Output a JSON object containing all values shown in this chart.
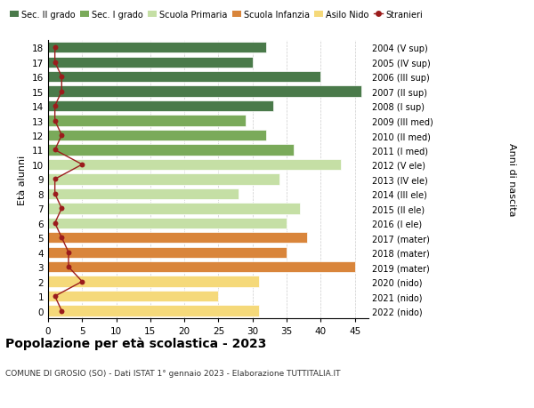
{
  "ages": [
    18,
    17,
    16,
    15,
    14,
    13,
    12,
    11,
    10,
    9,
    8,
    7,
    6,
    5,
    4,
    3,
    2,
    1,
    0
  ],
  "labels_right": [
    "2004 (V sup)",
    "2005 (IV sup)",
    "2006 (III sup)",
    "2007 (II sup)",
    "2008 (I sup)",
    "2009 (III med)",
    "2010 (II med)",
    "2011 (I med)",
    "2012 (V ele)",
    "2013 (IV ele)",
    "2014 (III ele)",
    "2015 (II ele)",
    "2016 (I ele)",
    "2017 (mater)",
    "2018 (mater)",
    "2019 (mater)",
    "2020 (nido)",
    "2021 (nido)",
    "2022 (nido)"
  ],
  "bar_values": [
    32,
    30,
    40,
    46,
    33,
    29,
    32,
    36,
    43,
    34,
    28,
    37,
    35,
    38,
    35,
    45,
    31,
    25,
    31
  ],
  "bar_colors": [
    "#4a7a4a",
    "#4a7a4a",
    "#4a7a4a",
    "#4a7a4a",
    "#4a7a4a",
    "#7aaa5a",
    "#7aaa5a",
    "#7aaa5a",
    "#c5dfa5",
    "#c5dfa5",
    "#c5dfa5",
    "#c5dfa5",
    "#c5dfa5",
    "#d9853b",
    "#d9853b",
    "#d9853b",
    "#f5d97a",
    "#f5d97a",
    "#f5d97a"
  ],
  "stranieri_values": [
    1,
    1,
    2,
    2,
    1,
    1,
    2,
    1,
    5,
    1,
    1,
    2,
    1,
    2,
    3,
    3,
    5,
    1,
    2
  ],
  "stranieri_color": "#9b1c1c",
  "legend_labels": [
    "Sec. II grado",
    "Sec. I grado",
    "Scuola Primaria",
    "Scuola Infanzia",
    "Asilo Nido",
    "Stranieri"
  ],
  "legend_colors": [
    "#4a7a4a",
    "#7aaa5a",
    "#c5dfa5",
    "#d9853b",
    "#f5d97a",
    "#9b1c1c"
  ],
  "title": "Popolazione per età scolastica - 2023",
  "subtitle": "COMUNE DI GROSIO (SO) - Dati ISTAT 1° gennaio 2023 - Elaborazione TUTTITALIA.IT",
  "ylabel_left": "Età alunni",
  "ylabel_right": "Anni di nascita",
  "xlim": [
    0,
    47
  ],
  "xticks": [
    0,
    5,
    10,
    15,
    20,
    25,
    30,
    35,
    40,
    45
  ],
  "bar_height": 0.75,
  "bg_color": "#ffffff",
  "grid_color": "#cccccc",
  "bar_edge_color": "#ffffff"
}
